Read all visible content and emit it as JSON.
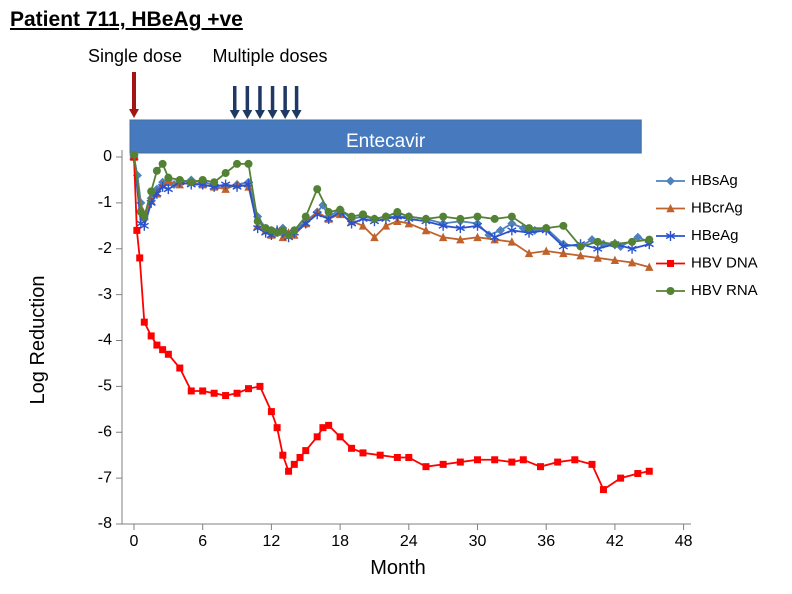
{
  "title": "Patient 711, HBeAg +ve",
  "annotations": {
    "single_dose": "Single dose",
    "multiple_doses": "Multiple doses",
    "drug_bar": "Entecavir",
    "single_dose_month": 0,
    "multiple_dose_months": [
      8.8,
      9.9,
      11.0,
      12.1,
      13.2,
      14.2
    ],
    "bar": {
      "start_month": -0.35,
      "end_month": 44.3
    }
  },
  "colors": {
    "bar_fill": "#4679bd",
    "bar_stroke": "#41719c",
    "single_arrow": "#a31515",
    "multi_arrow": "#1f3864",
    "axis": "#808080",
    "text": "#000000"
  },
  "chart_data": {
    "type": "line",
    "title": "Patient 711, HBeAg +ve",
    "xlabel": "Month",
    "ylabel": "Log Reduction",
    "xlim": [
      -3,
      48
    ],
    "ylim": [
      -8,
      0.3
    ],
    "xticks": [
      0,
      6,
      12,
      18,
      24,
      30,
      36,
      42,
      48
    ],
    "yticks": [
      0,
      -1,
      -2,
      -3,
      -4,
      -5,
      -6,
      -7,
      -8
    ],
    "legend_position": "right",
    "series": [
      {
        "name": "HBsAg",
        "color": "#4f81bd",
        "marker": "diamond",
        "points": [
          [
            0,
            0
          ],
          [
            0.3,
            -0.4
          ],
          [
            0.6,
            -1.0
          ],
          [
            0.9,
            -1.35
          ],
          [
            1.5,
            -0.9
          ],
          [
            2,
            -0.7
          ],
          [
            2.5,
            -0.55
          ],
          [
            3,
            -0.5
          ],
          [
            3.5,
            -0.6
          ],
          [
            4,
            -0.55
          ],
          [
            5,
            -0.5
          ],
          [
            6,
            -0.55
          ],
          [
            7,
            -0.6
          ],
          [
            8,
            -0.65
          ],
          [
            9,
            -0.6
          ],
          [
            10,
            -0.55
          ],
          [
            10.8,
            -1.3
          ],
          [
            11.5,
            -1.55
          ],
          [
            12,
            -1.6
          ],
          [
            12.5,
            -1.65
          ],
          [
            13,
            -1.55
          ],
          [
            13.5,
            -1.7
          ],
          [
            14,
            -1.6
          ],
          [
            15,
            -1.4
          ],
          [
            16,
            -1.2
          ],
          [
            16.5,
            -1.05
          ],
          [
            17,
            -1.3
          ],
          [
            18,
            -1.15
          ],
          [
            19,
            -1.35
          ],
          [
            20,
            -1.3
          ],
          [
            21,
            -1.35
          ],
          [
            22,
            -1.3
          ],
          [
            23,
            -1.3
          ],
          [
            24,
            -1.3
          ],
          [
            25.5,
            -1.35
          ],
          [
            27,
            -1.45
          ],
          [
            28.5,
            -1.4
          ],
          [
            30,
            -1.45
          ],
          [
            31,
            -1.7
          ],
          [
            32,
            -1.6
          ],
          [
            33,
            -1.45
          ],
          [
            34,
            -1.55
          ],
          [
            35,
            -1.6
          ],
          [
            36,
            -1.55
          ],
          [
            37.5,
            -1.9
          ],
          [
            39,
            -1.95
          ],
          [
            40,
            -1.8
          ],
          [
            41,
            -1.9
          ],
          [
            42.5,
            -1.95
          ],
          [
            44,
            -1.75
          ],
          [
            45,
            -1.85
          ]
        ]
      },
      {
        "name": "HBcrAg",
        "color": "#c0622c",
        "marker": "triangle",
        "points": [
          [
            0,
            0
          ],
          [
            0.6,
            -1.1
          ],
          [
            0.9,
            -1.3
          ],
          [
            1.5,
            -0.95
          ],
          [
            2,
            -0.8
          ],
          [
            2.5,
            -0.6
          ],
          [
            3,
            -0.55
          ],
          [
            4,
            -0.6
          ],
          [
            5,
            -0.55
          ],
          [
            6,
            -0.6
          ],
          [
            7,
            -0.65
          ],
          [
            8,
            -0.7
          ],
          [
            9,
            -0.6
          ],
          [
            10,
            -0.65
          ],
          [
            10.8,
            -1.5
          ],
          [
            11.5,
            -1.6
          ],
          [
            12,
            -1.7
          ],
          [
            12.5,
            -1.6
          ],
          [
            13,
            -1.75
          ],
          [
            13.5,
            -1.65
          ],
          [
            14,
            -1.7
          ],
          [
            15,
            -1.45
          ],
          [
            16,
            -1.2
          ],
          [
            17,
            -1.35
          ],
          [
            18,
            -1.25
          ],
          [
            19,
            -1.4
          ],
          [
            20,
            -1.5
          ],
          [
            21,
            -1.75
          ],
          [
            22,
            -1.5
          ],
          [
            23,
            -1.4
          ],
          [
            24,
            -1.45
          ],
          [
            25.5,
            -1.6
          ],
          [
            27,
            -1.75
          ],
          [
            28.5,
            -1.8
          ],
          [
            30,
            -1.75
          ],
          [
            31.5,
            -1.8
          ],
          [
            33,
            -1.85
          ],
          [
            34.5,
            -2.1
          ],
          [
            36,
            -2.05
          ],
          [
            37.5,
            -2.1
          ],
          [
            39,
            -2.15
          ],
          [
            40.5,
            -2.2
          ],
          [
            42,
            -2.25
          ],
          [
            43.5,
            -2.3
          ],
          [
            45,
            -2.4
          ]
        ]
      },
      {
        "name": "HBeAg",
        "color": "#2a52cc",
        "marker": "asterisk",
        "points": [
          [
            0,
            0
          ],
          [
            0.6,
            -1.45
          ],
          [
            0.9,
            -1.5
          ],
          [
            1.5,
            -1.0
          ],
          [
            2,
            -0.8
          ],
          [
            2.5,
            -0.65
          ],
          [
            3,
            -0.7
          ],
          [
            4,
            -0.55
          ],
          [
            5,
            -0.6
          ],
          [
            6,
            -0.6
          ],
          [
            7,
            -0.65
          ],
          [
            8,
            -0.6
          ],
          [
            9,
            -0.65
          ],
          [
            10,
            -0.6
          ],
          [
            10.8,
            -1.55
          ],
          [
            11.5,
            -1.65
          ],
          [
            12,
            -1.7
          ],
          [
            12.5,
            -1.6
          ],
          [
            13,
            -1.65
          ],
          [
            13.5,
            -1.75
          ],
          [
            14,
            -1.65
          ],
          [
            15,
            -1.45
          ],
          [
            16,
            -1.25
          ],
          [
            17,
            -1.35
          ],
          [
            18,
            -1.2
          ],
          [
            19,
            -1.45
          ],
          [
            20,
            -1.35
          ],
          [
            21,
            -1.4
          ],
          [
            22,
            -1.35
          ],
          [
            23,
            -1.3
          ],
          [
            24,
            -1.35
          ],
          [
            25.5,
            -1.4
          ],
          [
            27,
            -1.5
          ],
          [
            28.5,
            -1.55
          ],
          [
            30,
            -1.5
          ],
          [
            31.5,
            -1.75
          ],
          [
            33,
            -1.6
          ],
          [
            34.5,
            -1.65
          ],
          [
            36,
            -1.6
          ],
          [
            37.5,
            -1.95
          ],
          [
            39,
            -1.9
          ],
          [
            40.5,
            -2.0
          ],
          [
            42,
            -1.9
          ],
          [
            43.5,
            -2.0
          ],
          [
            45,
            -1.9
          ]
        ]
      },
      {
        "name": "HBV DNA",
        "color": "#fe0000",
        "marker": "square",
        "points": [
          [
            0,
            0
          ],
          [
            0.25,
            -1.6
          ],
          [
            0.5,
            -2.2
          ],
          [
            0.9,
            -3.6
          ],
          [
            1.5,
            -3.9
          ],
          [
            2,
            -4.1
          ],
          [
            2.5,
            -4.2
          ],
          [
            3,
            -4.3
          ],
          [
            4,
            -4.6
          ],
          [
            5,
            -5.1
          ],
          [
            6,
            -5.1
          ],
          [
            7,
            -5.15
          ],
          [
            8,
            -5.2
          ],
          [
            9,
            -5.15
          ],
          [
            10,
            -5.05
          ],
          [
            11,
            -5.0
          ],
          [
            12,
            -5.55
          ],
          [
            12.5,
            -5.9
          ],
          [
            13,
            -6.5
          ],
          [
            13.5,
            -6.85
          ],
          [
            14,
            -6.7
          ],
          [
            14.5,
            -6.55
          ],
          [
            15,
            -6.4
          ],
          [
            16,
            -6.1
          ],
          [
            16.5,
            -5.9
          ],
          [
            17,
            -5.85
          ],
          [
            18,
            -6.1
          ],
          [
            19,
            -6.35
          ],
          [
            20,
            -6.45
          ],
          [
            21.5,
            -6.5
          ],
          [
            23,
            -6.55
          ],
          [
            24,
            -6.55
          ],
          [
            25.5,
            -6.75
          ],
          [
            27,
            -6.7
          ],
          [
            28.5,
            -6.65
          ],
          [
            30,
            -6.6
          ],
          [
            31.5,
            -6.6
          ],
          [
            33,
            -6.65
          ],
          [
            34,
            -6.6
          ],
          [
            35.5,
            -6.75
          ],
          [
            37,
            -6.65
          ],
          [
            38.5,
            -6.6
          ],
          [
            40,
            -6.7
          ],
          [
            41,
            -7.25
          ],
          [
            42.5,
            -7.0
          ],
          [
            44,
            -6.9
          ],
          [
            45,
            -6.85
          ]
        ]
      },
      {
        "name": "HBV RNA",
        "color": "#548235",
        "marker": "circle",
        "points": [
          [
            0,
            0.05
          ],
          [
            0.6,
            -1.2
          ],
          [
            0.9,
            -1.3
          ],
          [
            1.5,
            -0.75
          ],
          [
            2,
            -0.3
          ],
          [
            2.5,
            -0.15
          ],
          [
            3,
            -0.45
          ],
          [
            4,
            -0.5
          ],
          [
            5,
            -0.55
          ],
          [
            6,
            -0.5
          ],
          [
            7,
            -0.55
          ],
          [
            8,
            -0.35
          ],
          [
            9,
            -0.15
          ],
          [
            10,
            -0.15
          ],
          [
            10.8,
            -1.4
          ],
          [
            11.5,
            -1.55
          ],
          [
            12,
            -1.6
          ],
          [
            12.5,
            -1.65
          ],
          [
            13,
            -1.6
          ],
          [
            13.5,
            -1.7
          ],
          [
            14,
            -1.6
          ],
          [
            15,
            -1.3
          ],
          [
            16,
            -0.7
          ],
          [
            17,
            -1.2
          ],
          [
            18,
            -1.15
          ],
          [
            19,
            -1.3
          ],
          [
            20,
            -1.25
          ],
          [
            21,
            -1.35
          ],
          [
            22,
            -1.3
          ],
          [
            23,
            -1.2
          ],
          [
            24,
            -1.3
          ],
          [
            25.5,
            -1.35
          ],
          [
            27,
            -1.3
          ],
          [
            28.5,
            -1.35
          ],
          [
            30,
            -1.3
          ],
          [
            31.5,
            -1.35
          ],
          [
            33,
            -1.3
          ],
          [
            34.5,
            -1.55
          ],
          [
            36,
            -1.55
          ],
          [
            37.5,
            -1.5
          ],
          [
            39,
            -1.95
          ],
          [
            40.5,
            -1.85
          ],
          [
            42,
            -1.9
          ],
          [
            43.5,
            -1.85
          ],
          [
            45,
            -1.8
          ]
        ]
      }
    ]
  }
}
